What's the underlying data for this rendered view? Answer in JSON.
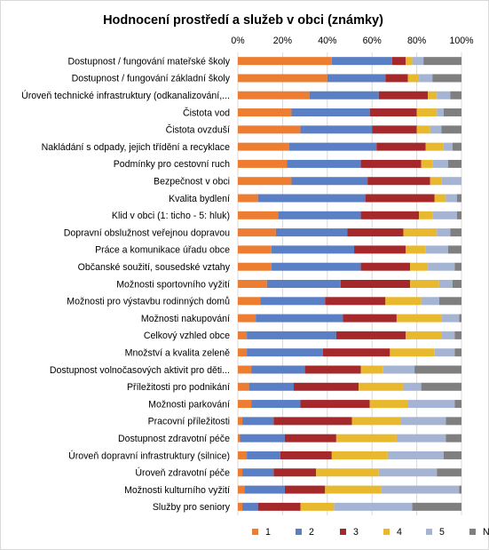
{
  "chart_data": {
    "type": "bar",
    "orientation": "horizontal",
    "stacked": "percent",
    "title": "Hodnocení prostředí a služeb v obci (známky)",
    "xlabel": "",
    "ylabel": "",
    "xlim": [
      0,
      100
    ],
    "x_ticks": [
      "0%",
      "20%",
      "40%",
      "60%",
      "80%",
      "100%"
    ],
    "grid": true,
    "legend_position": "bottom",
    "categories": [
      "Dostupnost / fungování mateřské školy",
      "Dostupnost / fungování základní školy",
      "Úroveň technické infrastruktury (odkanalizování,...",
      "Čistota vod",
      "Čistota ovzduší",
      "Nakládání s odpady, jejich třídění a recyklace",
      "Podmínky pro cestovní ruch",
      "Bezpečnost v obci",
      "Kvalita bydlení",
      "Klid v obci (1: ticho - 5: hluk)",
      "Dopravní obslužnost veřejnou dopravou",
      "Práce a komunikace úřadu obce",
      "Občanské soužití, sousedské vztahy",
      "Možnosti sportovního vyžití",
      "Možnosti pro výstavbu rodinných domů",
      "Možnosti nakupování",
      "Celkový vzhled obce",
      "Množství a kvalita zeleně",
      "Dostupnost volnočasových aktivit pro děti...",
      "Příležitosti pro podnikání",
      "Možnosti parkování",
      "Pracovní příležitosti",
      "Dostupnost zdravotní péče",
      "Úroveň dopravní infrastruktury (silnice)",
      "Úroveň zdravotní péče",
      "Možnosti kulturního vyžití",
      "Služby pro seniory"
    ],
    "series": [
      {
        "name": "1",
        "color": "#ed7d31",
        "values": [
          42,
          40,
          32,
          24,
          28,
          23,
          22,
          24,
          9,
          18,
          17,
          15,
          15,
          13,
          10,
          8,
          4,
          4,
          6,
          5,
          6,
          2,
          1,
          4,
          2,
          3,
          2
        ]
      },
      {
        "name": "2",
        "color": "#5b7fc4",
        "values": [
          27,
          26,
          31,
          35,
          32,
          39,
          33,
          34,
          48,
          37,
          32,
          37,
          40,
          33,
          29,
          39,
          40,
          34,
          24,
          20,
          22,
          14,
          20,
          15,
          14,
          18,
          7
        ]
      },
      {
        "name": "3",
        "color": "#a5282b",
        "values": [
          6,
          10,
          22,
          21,
          20,
          22,
          27,
          28,
          31,
          26,
          25,
          23,
          22,
          31,
          27,
          24,
          31,
          30,
          25,
          29,
          31,
          35,
          23,
          23,
          19,
          18,
          19
        ]
      },
      {
        "name": "4",
        "color": "#e8b92e",
        "values": [
          3,
          5,
          4,
          9,
          6,
          8,
          5,
          5,
          5,
          6,
          15,
          9,
          8,
          13,
          16,
          20,
          16,
          20,
          10,
          20,
          17,
          22,
          27,
          25,
          28,
          25,
          15
        ]
      },
      {
        "name": "5",
        "color": "#a5b4d3",
        "values": [
          5,
          6,
          6,
          3,
          5,
          4,
          7,
          9,
          5,
          11,
          6,
          10,
          12,
          6,
          8,
          8,
          6,
          9,
          14,
          8,
          21,
          20,
          22,
          25,
          26,
          35,
          35
        ]
      },
      {
        "name": "Nevím",
        "color": "#7f7f7f",
        "values": [
          17,
          13,
          5,
          8,
          9,
          4,
          6,
          0,
          2,
          2,
          5,
          6,
          3,
          4,
          10,
          1,
          3,
          3,
          21,
          18,
          3,
          7,
          7,
          8,
          11,
          1,
          22
        ]
      }
    ]
  }
}
